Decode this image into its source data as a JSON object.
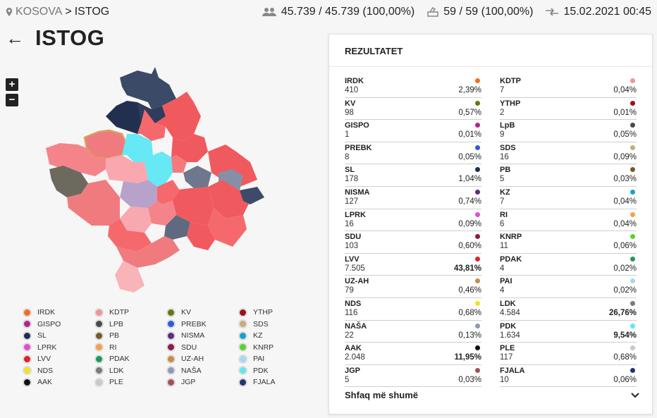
{
  "breadcrumb": {
    "root": "KOSOVA",
    "separator": ">",
    "current": "ISTOG"
  },
  "stats": {
    "voters": "45.739 / 45.739 (100,00%)",
    "stations": "59 / 59 (100,00%)",
    "updated": "15.02.2021 00:45"
  },
  "page_title": "ISTOG",
  "zoom": {
    "in": "+",
    "out": "−"
  },
  "panel": {
    "title": "REZULTATET",
    "show_more": "Shfaq më shumë"
  },
  "results_left": [
    {
      "name": "IRDK",
      "votes": "410",
      "percent": "2,39%",
      "color": "#f26d21"
    },
    {
      "name": "KV",
      "votes": "98",
      "percent": "0,57%",
      "color": "#6b7416"
    },
    {
      "name": "GISPO",
      "votes": "1",
      "percent": "0,01%",
      "color": "#b0268f"
    },
    {
      "name": "PREBK",
      "votes": "8",
      "percent": "0,05%",
      "color": "#2d5be3"
    },
    {
      "name": "SL",
      "votes": "178",
      "percent": "1,04%",
      "color": "#1d2f4f"
    },
    {
      "name": "NISMA",
      "votes": "127",
      "percent": "0,74%",
      "color": "#5b2d86"
    },
    {
      "name": "LPRK",
      "votes": "16",
      "percent": "0,09%",
      "color": "#e64bd1"
    },
    {
      "name": "SDU",
      "votes": "103",
      "percent": "0,60%",
      "color": "#8b1c4a"
    },
    {
      "name": "LVV",
      "votes": "7.505",
      "percent": "43,81%",
      "color": "#e3202b"
    },
    {
      "name": "UZ-AH",
      "votes": "79",
      "percent": "0,46%",
      "color": "#c98a4a"
    },
    {
      "name": "NDS",
      "votes": "116",
      "percent": "0,68%",
      "color": "#f2e41c"
    },
    {
      "name": "NAŠA",
      "votes": "22",
      "percent": "0,13%",
      "color": "#8c9ab8"
    },
    {
      "name": "AAK",
      "votes": "2.048",
      "percent": "11,95%",
      "color": "#111111"
    },
    {
      "name": "JGP",
      "votes": "5",
      "percent": "0,03%",
      "color": "#a3505a"
    }
  ],
  "results_right": [
    {
      "name": "KDTP",
      "votes": "7",
      "percent": "0,04%",
      "color": "#f09494"
    },
    {
      "name": "YTHP",
      "votes": "2",
      "percent": "0,01%",
      "color": "#a0101a"
    },
    {
      "name": "LpB",
      "votes": "9",
      "percent": "0,05%",
      "color": "#4a4a4a"
    },
    {
      "name": "SDS",
      "votes": "16",
      "percent": "0,09%",
      "color": "#c7ac7a"
    },
    {
      "name": "PB",
      "votes": "5",
      "percent": "0,03%",
      "color": "#7a5a2a"
    },
    {
      "name": "KZ",
      "votes": "7",
      "percent": "0,04%",
      "color": "#16a3c9"
    },
    {
      "name": "RI",
      "votes": "6",
      "percent": "0,04%",
      "color": "#f7a04a"
    },
    {
      "name": "KNRP",
      "votes": "11",
      "percent": "0,06%",
      "color": "#5bd12a"
    },
    {
      "name": "PDAK",
      "votes": "4",
      "percent": "0,02%",
      "color": "#1e9a5a"
    },
    {
      "name": "PAI",
      "votes": "4",
      "percent": "0,02%",
      "color": "#a8d8f0"
    },
    {
      "name": "LDK",
      "votes": "4.584",
      "percent": "26,76%",
      "color": "#7a7a7a"
    },
    {
      "name": "PDK",
      "votes": "1.634",
      "percent": "9,54%",
      "color": "#5ee8f2"
    },
    {
      "name": "PLE",
      "votes": "117",
      "percent": "0,68%",
      "color": "#c8c8c8"
    },
    {
      "name": "FJALA",
      "votes": "10",
      "percent": "0,06%",
      "color": "#23346e"
    }
  ],
  "legend": [
    {
      "name": "IRDK",
      "color": "#f26d21"
    },
    {
      "name": "KDTP",
      "color": "#f09494"
    },
    {
      "name": "KV",
      "color": "#6b7416"
    },
    {
      "name": "YTHP",
      "color": "#a0101a"
    },
    {
      "name": "GISPO",
      "color": "#b0268f"
    },
    {
      "name": "LPB",
      "color": "#4a4a4a"
    },
    {
      "name": "PREBK",
      "color": "#2d5be3"
    },
    {
      "name": "SDS",
      "color": "#c7ac7a"
    },
    {
      "name": "SL",
      "color": "#1d2f4f"
    },
    {
      "name": "PB",
      "color": "#7a5a2a"
    },
    {
      "name": "NISMA",
      "color": "#5b2d86"
    },
    {
      "name": "KZ",
      "color": "#16a3c9"
    },
    {
      "name": "LPRK",
      "color": "#e64bd1"
    },
    {
      "name": "RI",
      "color": "#f7a04a"
    },
    {
      "name": "SDU",
      "color": "#8b1c4a"
    },
    {
      "name": "KNRP",
      "color": "#5bd12a"
    },
    {
      "name": "LVV",
      "color": "#e3202b"
    },
    {
      "name": "PDAK",
      "color": "#1e9a5a"
    },
    {
      "name": "UZ-AH",
      "color": "#c98a4a"
    },
    {
      "name": "PAI",
      "color": "#a8d8f0"
    },
    {
      "name": "NDS",
      "color": "#f2e41c"
    },
    {
      "name": "LDK",
      "color": "#7a7a7a"
    },
    {
      "name": "NAŠA",
      "color": "#8c9ab8"
    },
    {
      "name": "PDK",
      "color": "#5ee8f2"
    },
    {
      "name": "AAK",
      "color": "#111111"
    },
    {
      "name": "PLE",
      "color": "#c8c8c8"
    },
    {
      "name": "JGP",
      "color": "#a3505a"
    },
    {
      "name": "FJALA",
      "color": "#23346e"
    }
  ]
}
